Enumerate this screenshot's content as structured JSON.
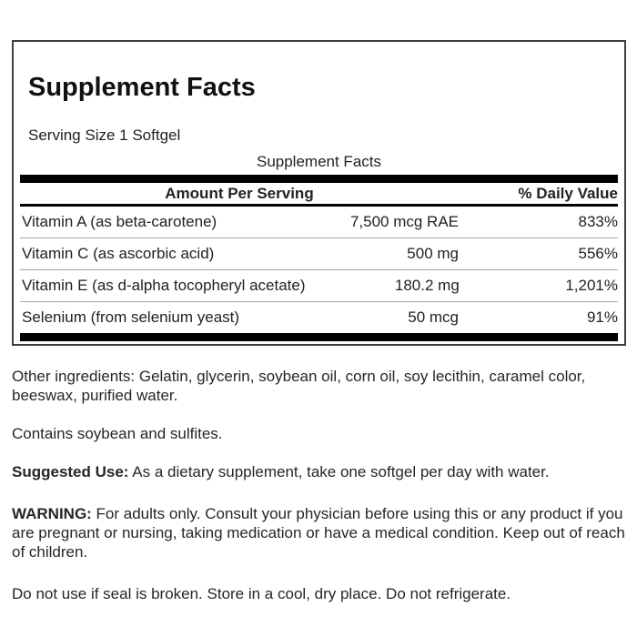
{
  "label": {
    "title": "Supplement Facts",
    "serving_size": "Serving Size 1 Softgel",
    "table": {
      "caption": "Supplement Facts",
      "col_amount": "Amount Per Serving",
      "col_daily_value": "% Daily Value",
      "rows": [
        {
          "name": "Vitamin A (as beta-carotene)",
          "amount": "7,500 mcg RAE",
          "dv": "833%"
        },
        {
          "name": "Vitamin C (as ascorbic acid)",
          "amount": "500 mg",
          "dv": "556%"
        },
        {
          "name": "Vitamin E (as d-alpha tocopheryl acetate)",
          "amount": "180.2 mg",
          "dv": "1,201%"
        },
        {
          "name": "Selenium (from selenium yeast)",
          "amount": "50 mcg",
          "dv": "91%"
        }
      ]
    }
  },
  "body": {
    "other_ingredients": "Other ingredients: Gelatin, glycerin, soybean oil, corn oil, soy lecithin, caramel color, beeswax, purified water.",
    "contains": "Contains soybean and sulfites.",
    "suggested_use_label": "Suggested Use:",
    "suggested_use_text": " As a dietary supplement, take one softgel per day with water.",
    "warning_label": "WARNING:",
    "warning_text": " For adults only. Consult your physician before using this or any product if you are pregnant or nursing, taking medication or have a medical condition. Keep out of reach of children.",
    "storage": "Do not use if seal is broken. Store in a cool, dry place. Do not refrigerate."
  },
  "colors": {
    "background": "#ffffff",
    "text": "#222222",
    "bar": "#000000",
    "panel_border": "#3f3f3f",
    "row_divider": "#a8a8a8"
  }
}
